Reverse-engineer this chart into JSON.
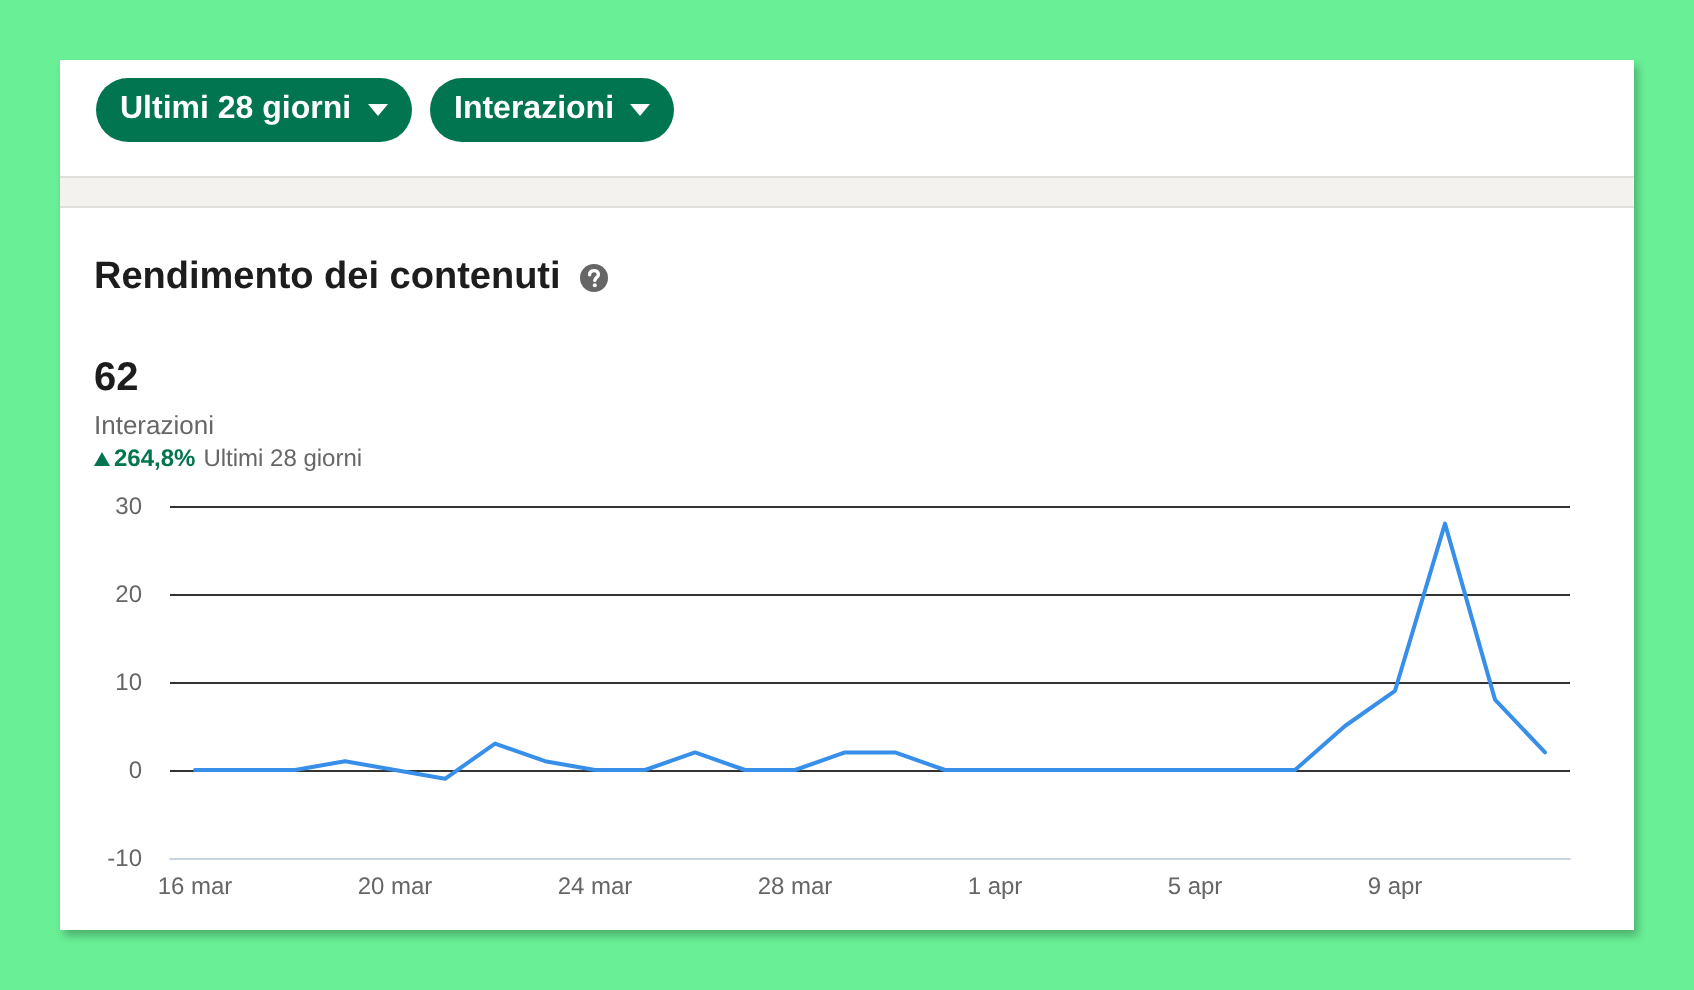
{
  "chart_data": {
    "type": "line",
    "title": "Rendimento dei contenuti",
    "annotations": [
      "Ultimi 28 giorni",
      "Interazioni",
      "62",
      "Interazioni",
      "264,8%",
      "Ultimi 28 giorni"
    ],
    "categories": [
      "16 mar",
      null,
      null,
      null,
      "20 mar",
      null,
      null,
      null,
      "24 mar",
      null,
      null,
      null,
      "28 mar",
      null,
      null,
      null,
      "1 apr",
      null,
      null,
      null,
      "5 apr",
      null,
      null,
      null,
      "9 apr",
      null,
      null,
      null
    ],
    "series": [
      {
        "color": "#378fe9",
        "values": [
          0,
          0,
          0,
          1,
          0,
          -1,
          3,
          1,
          0,
          0,
          2,
          0,
          0,
          2,
          2,
          0,
          0,
          0,
          0,
          0,
          0,
          0,
          0,
          5,
          9,
          28,
          8,
          2
        ]
      }
    ],
    "ylim": [
      -10,
      30
    ],
    "yticks": [
      -10,
      0,
      10,
      20,
      30
    ],
    "grid": "y",
    "marker": "none",
    "line_style": "solid"
  }
}
